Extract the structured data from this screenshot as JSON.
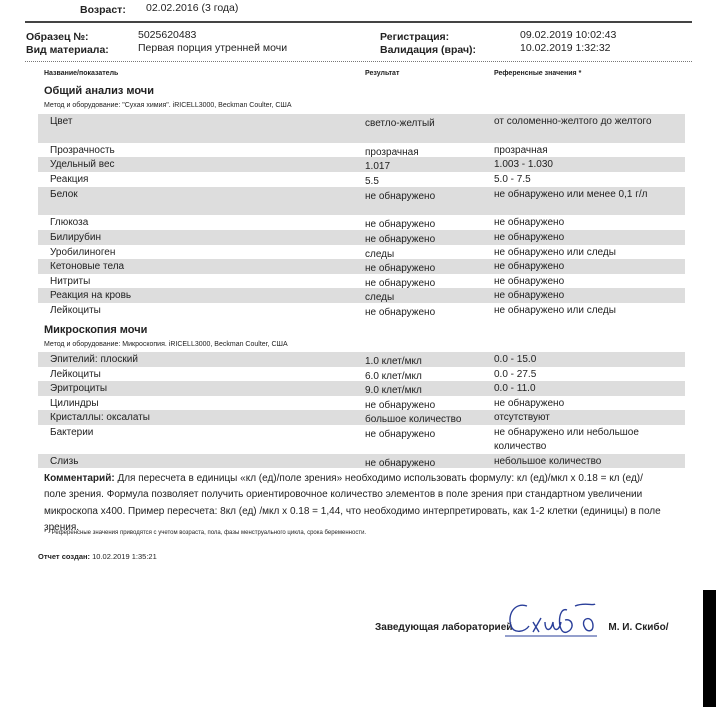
{
  "patient": {
    "age_label": "Возраст:",
    "age_value": "02.02.2016 (3 года)"
  },
  "sample": {
    "number_label": "Образец №:",
    "number_value": "5025620483",
    "material_label": "Вид материала:",
    "material_value": "Первая порция утренней мочи",
    "registration_label": "Регистрация:",
    "registration_value": "09.02.2019  10:02:43",
    "validation_label": "Валидация (врач):",
    "validation_value": "10.02.2019   1:32:32"
  },
  "columns": {
    "name": "Название/показатель",
    "result": "Результат",
    "reference": "Референсные значения *"
  },
  "sections": [
    {
      "title": "Общий анализ мочи",
      "method": "Метод и оборудование:  \"Сухая химия\". iRICELL3000, Beckman Coulter, США",
      "rows": [
        [
          "Цвет",
          "светло-желтый",
          "от соломенно-желтого до желтого"
        ],
        [
          "Прозрачность",
          "прозрачная",
          "прозрачная"
        ],
        [
          "Удельный вес",
          "1.017",
          "1.003 - 1.030"
        ],
        [
          "Реакция",
          "5.5",
          "5.0 - 7.5"
        ],
        [
          "Белок",
          "не обнаружено",
          "не обнаружено или менее 0,1 г/л"
        ],
        [
          "Глюкоза",
          "не обнаружено",
          "не обнаружено"
        ],
        [
          "Билирубин",
          "не обнаружено",
          "не обнаружено"
        ],
        [
          "Уробилиноген",
          "следы",
          "не обнаружено или следы"
        ],
        [
          "Кетоновые тела",
          "не обнаружено",
          "не обнаружено"
        ],
        [
          "Нитриты",
          "не обнаружено",
          "не обнаружено"
        ],
        [
          "Реакция на кровь",
          "следы",
          "не обнаружено"
        ],
        [
          "Лейкоциты",
          "не обнаружено",
          "не обнаружено или следы"
        ]
      ]
    },
    {
      "title": "Микроскопия мочи",
      "method": "Метод и оборудование:  Микроскопия. iRICELL3000, Beckman Coulter, США",
      "rows": [
        [
          "Эпителий: плоский",
          "1.0 клет/мкл",
          "0.0 - 15.0"
        ],
        [
          "Лейкоциты",
          "6.0 клет/мкл",
          "0.0 - 27.5"
        ],
        [
          "Эритроциты",
          "9.0 клет/мкл",
          "0.0 - 11.0"
        ],
        [
          "Цилиндры",
          "не обнаружено",
          "не обнаружено"
        ],
        [
          "Кристаллы: оксалаты",
          "большое количество",
          "отсутствуют"
        ],
        [
          "Бактерии",
          "не обнаружено",
          "не обнаружено или небольшое количество"
        ],
        [
          "Слизь",
          "не обнаружено",
          "небольшое количество"
        ]
      ]
    }
  ],
  "comment": {
    "label": "Комментарий:",
    "text": " Для пересчета в единицы «кл (ед)/поле зрения» необходимо использовать формулу: кл (ед)/мкл х 0.18 = кл (ед)/поле зрения. Формула позволяет получить ориентировочное количество элементов в поле зрения при стандартном увеличении микроскопа х400. Пример пересчета: 8кл (ед) /мкл х 0.18 = 1,44, что необходимо интерпретировать, как 1-2 клетки (единицы) в поле зрения."
  },
  "footnote": "* - Референсные значения приводятся с учетом возраста, пола, фазы менструального цикла, срока беременности.",
  "created": {
    "label": "Отчет создан:",
    "value": " 10.02.2019  1:35:21"
  },
  "signature": {
    "label": "Заведующая лабораторией",
    "signature_text": "Скибо",
    "name": "М. И. Скибо/"
  },
  "colors": {
    "row_shade": "#dddddd",
    "signature_ink": "#2a3f9a"
  }
}
